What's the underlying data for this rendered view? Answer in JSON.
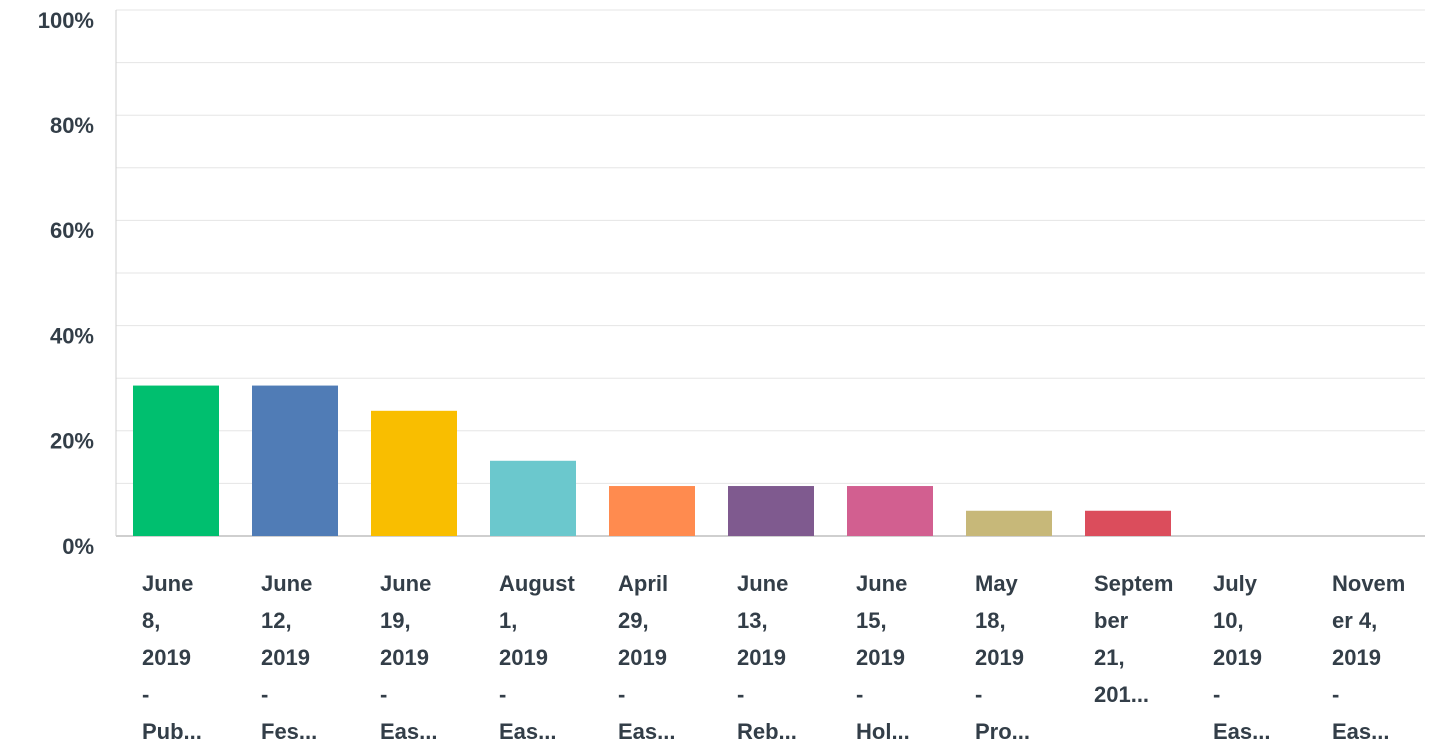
{
  "chart_data": {
    "type": "bar",
    "categories": [
      [
        "June",
        "8,",
        "2019",
        "-",
        "Pub..."
      ],
      [
        "June",
        "12,",
        "2019",
        "-",
        "Fes..."
      ],
      [
        "June",
        "19,",
        "2019",
        "-",
        "Eas..."
      ],
      [
        "August",
        "1,",
        "2019",
        "-",
        "Eas..."
      ],
      [
        "April",
        "29,",
        "2019",
        "-",
        "Eas..."
      ],
      [
        "June",
        "13,",
        "2019",
        "-",
        "Reb..."
      ],
      [
        "June",
        "15,",
        "2019",
        "-",
        "Hol..."
      ],
      [
        "May",
        "18,",
        "2019",
        "-",
        "Pro..."
      ],
      [
        "Septem",
        "ber",
        "21,",
        "201..."
      ],
      [
        "July",
        "10,",
        "2019",
        "-",
        "Eas..."
      ],
      [
        "Novem",
        "er 4,",
        "2019",
        "-",
        "Eas..."
      ]
    ],
    "values": [
      28.6,
      28.6,
      23.8,
      14.3,
      9.5,
      9.5,
      9.5,
      4.8,
      4.8,
      0,
      0
    ],
    "colors": [
      "#00bf6f",
      "#507cb6",
      "#f9be00",
      "#6bc8cd",
      "#ff8b4f",
      "#7f5a8f",
      "#d25f90",
      "#c7b879",
      "#db4d5c",
      "#a5a5a5",
      "#5f5f5f"
    ],
    "ylim": [
      0,
      100
    ],
    "yticks": [
      {
        "value": 0,
        "label": "0%"
      },
      {
        "value": 20,
        "label": "20%"
      },
      {
        "value": 40,
        "label": "40%"
      },
      {
        "value": 60,
        "label": "60%"
      },
      {
        "value": 80,
        "label": "80%"
      },
      {
        "value": 100,
        "label": "100%"
      }
    ],
    "minor_yticks": [
      10,
      30,
      50,
      70,
      90
    ],
    "grid": true
  }
}
